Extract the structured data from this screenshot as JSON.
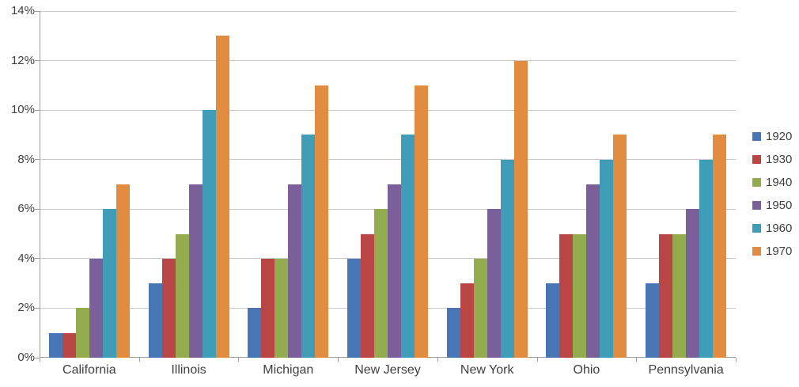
{
  "chart_data": {
    "type": "bar",
    "title": "",
    "xlabel": "",
    "ylabel": "",
    "categories": [
      "California",
      "Illinois",
      "Michigan",
      "New Jersey",
      "New York",
      "Ohio",
      "Pennsylvania"
    ],
    "series": [
      {
        "name": "1920",
        "color": "#4775b6",
        "values": [
          1,
          3,
          2,
          4,
          2,
          3,
          3
        ]
      },
      {
        "name": "1930",
        "color": "#b94644",
        "values": [
          1,
          4,
          4,
          5,
          3,
          5,
          5
        ]
      },
      {
        "name": "1940",
        "color": "#93ac4e",
        "values": [
          2,
          5,
          4,
          6,
          4,
          5,
          5
        ]
      },
      {
        "name": "1950",
        "color": "#7b5f9a",
        "values": [
          4,
          7,
          7,
          7,
          6,
          7,
          6
        ]
      },
      {
        "name": "1960",
        "color": "#3f9db8",
        "values": [
          6,
          10,
          9,
          9,
          8,
          8,
          8
        ]
      },
      {
        "name": "1970",
        "color": "#e18c3e",
        "values": [
          7,
          13,
          11,
          11,
          12,
          9,
          9
        ]
      }
    ],
    "ylim": [
      0,
      14
    ],
    "ytick_step": 2,
    "ytick_labels": [
      "0%",
      "2%",
      "4%",
      "6%",
      "8%",
      "10%",
      "12%",
      "14%"
    ],
    "value_suffix": "%",
    "grid": true,
    "legend_position": "right",
    "colors": {
      "axis": "#9d9d9d",
      "gridline": "#c9c9c9",
      "text": "#404040",
      "background": "#ffffff"
    }
  }
}
